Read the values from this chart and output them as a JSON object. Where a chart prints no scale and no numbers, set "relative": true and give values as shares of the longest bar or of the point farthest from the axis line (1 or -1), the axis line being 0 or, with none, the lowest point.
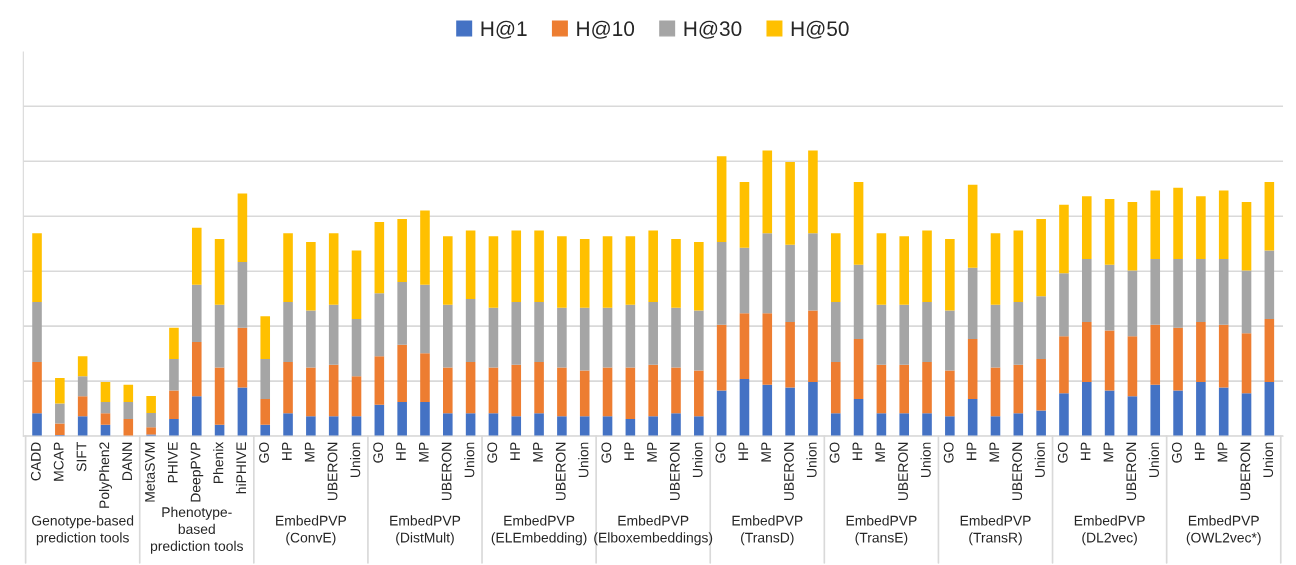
{
  "chart_data": {
    "type": "bar",
    "stacked": true,
    "relative": true,
    "grid": "y",
    "legend": "top",
    "categories": [
      "CADD",
      "MCAP",
      "SIFT",
      "PolyPhen2",
      "DANN",
      "MetaSVM",
      "PHIVE",
      "DeepPVP",
      "Phenix",
      "hiPHIVE",
      "GO",
      "HP",
      "MP",
      "UBERON",
      "Union",
      "GO",
      "HP",
      "MP",
      "UBERON",
      "Union",
      "GO",
      "HP",
      "MP",
      "UBERON",
      "Union",
      "GO",
      "HP",
      "MP",
      "UBERON",
      "Union",
      "GO",
      "HP",
      "MP",
      "UBERON",
      "Union",
      "GO",
      "HP",
      "MP",
      "UBERON",
      "Union",
      "GO",
      "HP",
      "MP",
      "UBERON",
      "Union",
      "GO",
      "HP",
      "MP",
      "UBERON",
      "Union",
      "GO",
      "HP",
      "MP",
      "UBERON",
      "Union"
    ],
    "series": [
      {
        "name": "H@1",
        "color": "#4472c4",
        "values": [
          0.08,
          0.004,
          0.07,
          0.04,
          0,
          0.006,
          0.06,
          0.14,
          0.04,
          0.17,
          0.04,
          0.08,
          0.07,
          0.07,
          0.07,
          0.11,
          0.12,
          0.12,
          0.08,
          0.08,
          0.08,
          0.07,
          0.08,
          0.07,
          0.07,
          0.07,
          0.06,
          0.07,
          0.08,
          0.07,
          0.16,
          0.2,
          0.18,
          0.17,
          0.19,
          0.08,
          0.13,
          0.08,
          0.08,
          0.08,
          0.07,
          0.13,
          0.07,
          0.08,
          0.09,
          0.15,
          0.19,
          0.16,
          0.14,
          0.18,
          0.16,
          0.19,
          0.17,
          0.15,
          0.19
        ]
      },
      {
        "name": "H@10",
        "color": "#ed7d31",
        "values": [
          0.18,
          0.04,
          0.07,
          0.04,
          0.06,
          0.025,
          0.1,
          0.19,
          0.2,
          0.21,
          0.09,
          0.18,
          0.17,
          0.18,
          0.14,
          0.17,
          0.2,
          0.17,
          0.16,
          0.18,
          0.16,
          0.18,
          0.18,
          0.17,
          0.16,
          0.17,
          0.18,
          0.18,
          0.16,
          0.16,
          0.23,
          0.23,
          0.25,
          0.23,
          0.25,
          0.18,
          0.21,
          0.17,
          0.17,
          0.18,
          0.16,
          0.21,
          0.17,
          0.17,
          0.18,
          0.2,
          0.21,
          0.21,
          0.21,
          0.21,
          0.22,
          0.21,
          0.22,
          0.21,
          0.22
        ]
      },
      {
        "name": "H@30",
        "color": "#a5a5a5",
        "values": [
          0.21,
          0.07,
          0.07,
          0.04,
          0.06,
          0.05,
          0.11,
          0.2,
          0.22,
          0.23,
          0.14,
          0.21,
          0.2,
          0.21,
          0.2,
          0.22,
          0.22,
          0.24,
          0.22,
          0.22,
          0.21,
          0.22,
          0.21,
          0.21,
          0.22,
          0.21,
          0.22,
          0.22,
          0.21,
          0.21,
          0.29,
          0.23,
          0.28,
          0.27,
          0.27,
          0.21,
          0.26,
          0.21,
          0.21,
          0.21,
          0.21,
          0.25,
          0.22,
          0.22,
          0.22,
          0.22,
          0.22,
          0.23,
          0.23,
          0.23,
          0.24,
          0.22,
          0.23,
          0.22,
          0.24
        ]
      },
      {
        "name": "H@50",
        "color": "#ffc000",
        "values": [
          0.24,
          0.09,
          0.07,
          0.07,
          0.06,
          0.06,
          0.11,
          0.2,
          0.23,
          0.24,
          0.15,
          0.24,
          0.24,
          0.25,
          0.24,
          0.25,
          0.22,
          0.26,
          0.24,
          0.24,
          0.25,
          0.25,
          0.25,
          0.25,
          0.24,
          0.25,
          0.24,
          0.25,
          0.24,
          0.24,
          0.3,
          0.23,
          0.29,
          0.29,
          0.29,
          0.24,
          0.29,
          0.25,
          0.24,
          0.25,
          0.25,
          0.29,
          0.25,
          0.25,
          0.27,
          0.24,
          0.22,
          0.23,
          0.24,
          0.24,
          0.25,
          0.22,
          0.24,
          0.24,
          0.24
        ]
      }
    ],
    "annotations": [
      "Genotype-based\nprediction tools",
      "Phenotype-\nbased\nprediction tools",
      "EmbedPVP\n(ConvE)",
      "EmbedPVP\n(DistMult)",
      "EmbedPVP\n(ELEmbedding)",
      "EmbedPVP\n(Elboxembeddings)",
      "EmbedPVP\n(TransD)",
      "EmbedPVP\n(TransE)",
      "EmbedPVP\n(TransR)",
      "EmbedPVP\n(DL2vec)",
      "EmbedPVP\n(OWL2vec*)"
    ]
  }
}
